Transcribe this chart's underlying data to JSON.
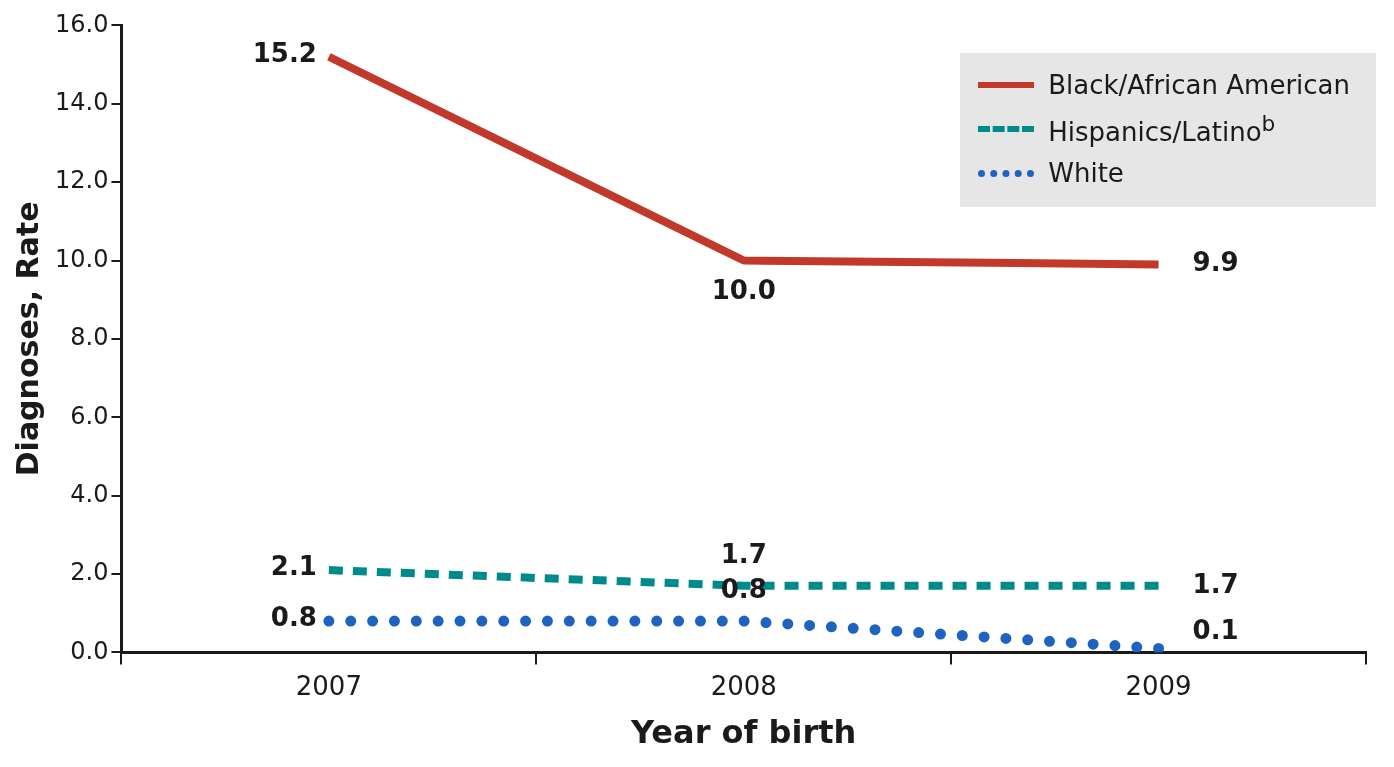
{
  "chart_data": {
    "type": "line",
    "xlabel": "Year of birth",
    "ylabel": "Diagnoses, Rate",
    "categories": [
      "2007",
      "2008",
      "2009"
    ],
    "series": [
      {
        "name": "Black/African American",
        "color": "#c0392b",
        "line_style": "solid",
        "values": [
          15.2,
          10.0,
          9.9
        ],
        "value_labels": [
          "15.2",
          "10.0",
          "9.9"
        ]
      },
      {
        "name": "Hispanics/Latino$^{b}$",
        "color": "#008b8b",
        "line_style": "dashed",
        "values": [
          2.1,
          1.7,
          1.7
        ],
        "value_labels": [
          "2.1",
          "1.7",
          "1.7"
        ]
      },
      {
        "name": "White",
        "color": "#1f63c0",
        "line_style": "dotted",
        "values": [
          0.8,
          0.8,
          0.1
        ],
        "value_labels": [
          "0.8",
          "0.8",
          "0.1"
        ]
      }
    ],
    "ylim": [
      0,
      16
    ],
    "yticks": [
      {
        "value": 0,
        "label": "0.0"
      },
      {
        "value": 2,
        "label": "2.0"
      },
      {
        "value": 4,
        "label": "4.0"
      },
      {
        "value": 6,
        "label": "6.0"
      },
      {
        "value": 8,
        "label": "8.0"
      },
      {
        "value": 10,
        "label": "10.0"
      },
      {
        "value": 12,
        "label": "12.0"
      },
      {
        "value": 14,
        "label": "14.0"
      },
      {
        "value": 16,
        "label": "16.0"
      }
    ],
    "grid": false,
    "legend": "top right",
    "marker": "none"
  }
}
